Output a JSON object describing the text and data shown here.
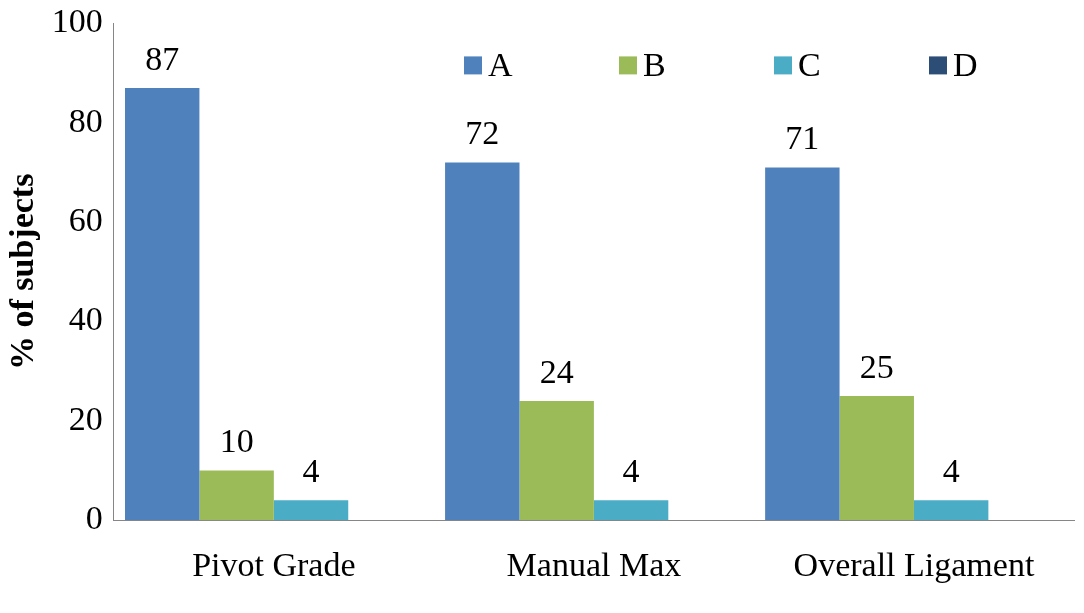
{
  "chart_data": {
    "type": "bar",
    "ylabel": "% of subjects",
    "categories": [
      "Pivot Grade",
      "Manual Max",
      "Overall Ligament"
    ],
    "series": [
      {
        "name": "A",
        "color": "#4f81bd",
        "values": [
          87,
          72,
          71
        ],
        "value_labels": [
          "87",
          "72",
          "71"
        ]
      },
      {
        "name": "B",
        "color": "#9bbb59",
        "values": [
          10,
          24,
          25
        ],
        "value_labels": [
          "10",
          "24",
          "25"
        ]
      },
      {
        "name": "C",
        "color": "#4bacc6",
        "values": [
          4,
          4,
          4
        ],
        "value_labels": [
          "4",
          "4",
          "4"
        ]
      },
      {
        "name": "D",
        "color": "#2c4d75",
        "values": [
          null,
          null,
          null
        ]
      }
    ],
    "ylim": [
      0,
      100
    ],
    "yticks": [
      0,
      20,
      40,
      60,
      80,
      100
    ],
    "grid": false,
    "legend": "top right"
  }
}
